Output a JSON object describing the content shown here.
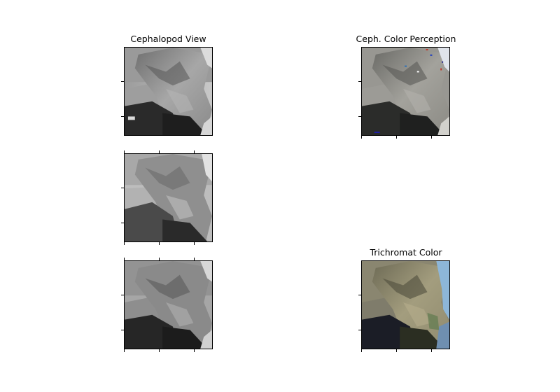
{
  "figure": {
    "panels": [
      {
        "id": "cephalopod-view",
        "title": "Cephalopod View",
        "image": "grayscale rocky shoreline photo",
        "colormap": "gray"
      },
      {
        "id": "ceph-color-perception",
        "title": "Ceph. Color Perception",
        "image": "desaturated rocky shoreline photo with sparse colored pixels",
        "colormap": "false-color"
      },
      {
        "id": "grayscale-middle",
        "title": "",
        "image": "grayscale rocky shoreline photo",
        "colormap": "gray"
      },
      {
        "id": "grayscale-bottom",
        "title": "",
        "image": "grayscale rocky shoreline photo",
        "colormap": "gray"
      },
      {
        "id": "trichromat-color",
        "title": "Trichromat Color",
        "image": "color rocky shoreline photo",
        "colormap": "rgb"
      }
    ],
    "colors": {
      "axis": "#000000",
      "background": "#ffffff",
      "sky": "#8db6d8",
      "sea_dark": "#1b1d26",
      "rock_gray": "#8c8c8c",
      "rock_tan": "#8f8a6e"
    }
  }
}
